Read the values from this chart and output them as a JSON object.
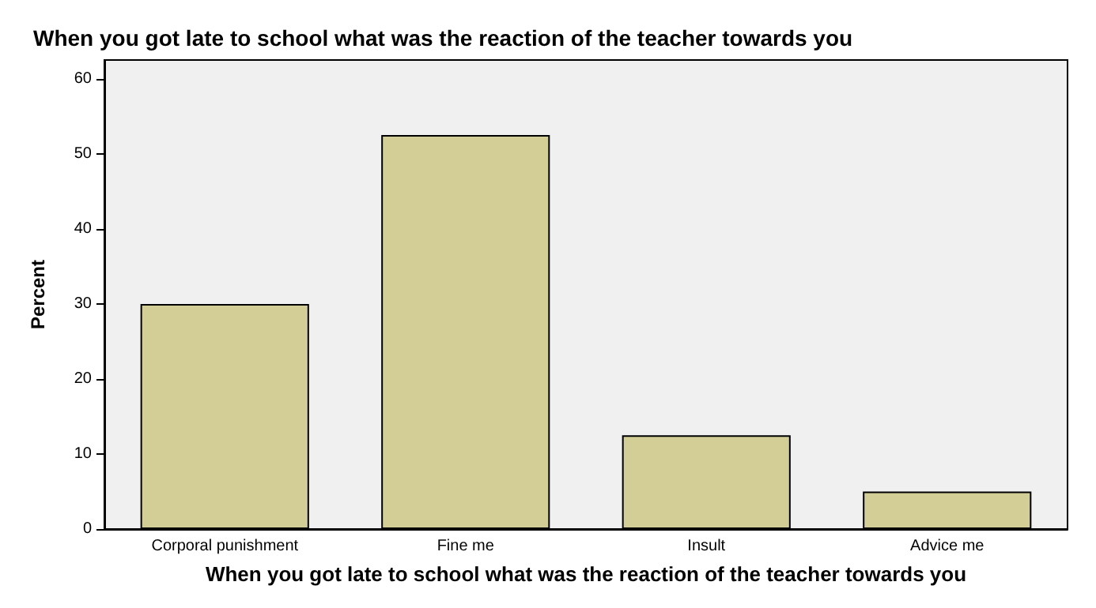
{
  "chart_data": {
    "type": "bar",
    "title": "When you got late to school what was the reaction of the teacher towards you",
    "xlabel": "When you got late to school what was the reaction of the teacher towards you",
    "ylabel": "Percent",
    "categories": [
      "Corporal punishment",
      "Fine me",
      "Insult",
      "Advice me"
    ],
    "values": [
      30,
      52.5,
      12.5,
      5
    ],
    "color": "#d3ce96",
    "ylim": [
      0,
      62.5
    ],
    "yticks": [
      0,
      10,
      20,
      30,
      40,
      50,
      60
    ],
    "grid": false
  }
}
